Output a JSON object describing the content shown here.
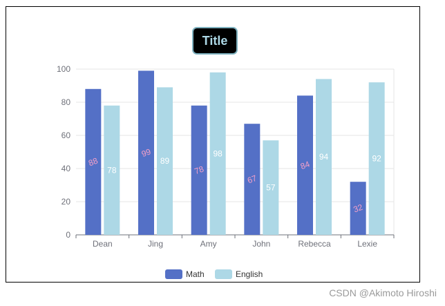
{
  "chart_data": {
    "type": "bar",
    "title": "Title",
    "categories": [
      "Dean",
      "Jing",
      "Amy",
      "John",
      "Rebecca",
      "Lexie"
    ],
    "series": [
      {
        "name": "Math",
        "values": [
          88,
          99,
          78,
          67,
          84,
          32
        ],
        "color": "#5470c6",
        "label_color": "#f5a0c8"
      },
      {
        "name": "English",
        "values": [
          78,
          89,
          98,
          57,
          94,
          92
        ],
        "color": "#add8e6",
        "label_color": "#ffffff"
      }
    ],
    "ylim": [
      0,
      100
    ],
    "yticks": [
      0,
      20,
      40,
      60,
      80,
      100
    ],
    "grid": true,
    "legend": "bottom-center",
    "title_style": {
      "background": "#000000",
      "text_color": "#add8e6",
      "border": "#7fb2c0"
    }
  },
  "watermark": "CSDN @Akimoto Hiroshi"
}
